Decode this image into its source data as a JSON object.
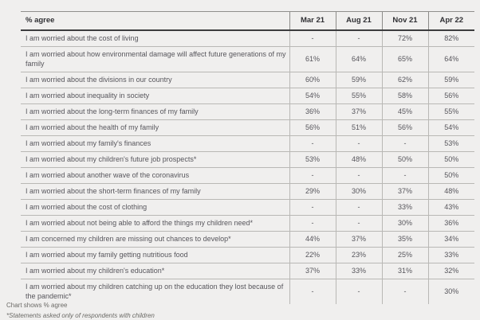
{
  "page": {
    "background": "#f0efee",
    "text_color": "#57565c",
    "header_text_color": "#303034",
    "grid_color": "#b9b8b5",
    "header_rule_color": "#3c3c3e"
  },
  "chart_data": {
    "type": "table",
    "title": "% agree",
    "categories": [
      "Mar 21",
      "Aug 21",
      "Nov 21",
      "Apr 22"
    ],
    "series": [
      {
        "name": "I am worried about the cost of living",
        "values": [
          null,
          null,
          72,
          82
        ]
      },
      {
        "name": "I am worried about how environmental damage will affect future generations of my family",
        "values": [
          61,
          64,
          65,
          64
        ]
      },
      {
        "name": "I am worried about the divisions in our country",
        "values": [
          60,
          59,
          62,
          59
        ]
      },
      {
        "name": "I am worried about inequality in society",
        "values": [
          54,
          55,
          58,
          56
        ]
      },
      {
        "name": "I am worried about the long-term finances of my family",
        "values": [
          36,
          37,
          45,
          55
        ]
      },
      {
        "name": "I am worried about the health of my family",
        "values": [
          56,
          51,
          56,
          54
        ]
      },
      {
        "name": "I am worried about my family's finances",
        "values": [
          null,
          null,
          null,
          53
        ]
      },
      {
        "name": "I am worried about my children's future job prospects*",
        "values": [
          53,
          48,
          50,
          50
        ]
      },
      {
        "name": "I am worried about another wave of the coronavirus",
        "values": [
          null,
          null,
          null,
          50
        ]
      },
      {
        "name": "I am worried about the short-term finances of my family",
        "values": [
          29,
          30,
          37,
          48
        ]
      },
      {
        "name": "I am worried about the cost of clothing",
        "values": [
          null,
          null,
          33,
          43
        ]
      },
      {
        "name": "I am worried about not being able to afford the things my children need*",
        "values": [
          null,
          null,
          30,
          36
        ]
      },
      {
        "name": "I am concerned my children are missing out chances to develop*",
        "values": [
          44,
          37,
          35,
          34
        ]
      },
      {
        "name": "I am worried about my family getting nutritious food",
        "values": [
          22,
          23,
          25,
          33
        ]
      },
      {
        "name": "I am worried about my children's education*",
        "values": [
          37,
          33,
          31,
          32
        ]
      },
      {
        "name": "I am worried about my children catching up on the education they lost because of the pandemic*",
        "values": [
          null,
          null,
          null,
          30
        ]
      }
    ],
    "value_suffix": "%",
    "empty_cell": "-"
  },
  "footer": {
    "line1": "Chart shows % agree",
    "line2": "*Statements asked only of respondents with children"
  }
}
